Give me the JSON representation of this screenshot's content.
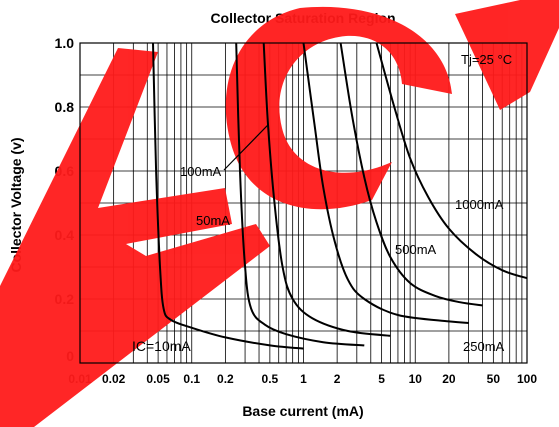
{
  "chart_data": {
    "type": "line",
    "title": "Collector Saturation Region",
    "xlabel": "Base current (mA)",
    "ylabel": "Collector Voltage (v)",
    "x_scale": "log",
    "xlim": [
      0.01,
      100
    ],
    "ylim": [
      0,
      1.0
    ],
    "grid": true,
    "x_ticks": [
      "0.01",
      "0.02",
      "0.05",
      "0.1",
      "0.2",
      "0.5",
      "1",
      "2",
      "5",
      "10",
      "20",
      "50",
      "100"
    ],
    "y_ticks": [
      {
        "value": 0,
        "label": "0"
      },
      {
        "value": 0.2,
        "label": "0.2"
      },
      {
        "value": 0.4,
        "label": "0.4"
      },
      {
        "value": 0.6,
        "label": "0.6"
      },
      {
        "value": 0.8,
        "label": "0.8"
      },
      {
        "value": 1.0,
        "label": "1.0"
      }
    ],
    "annotation": "Tj=25 °C",
    "series": [
      {
        "name": "Ic=10mA",
        "label_display": "IC=10mA",
        "points": [
          [
            0.045,
            1.0
          ],
          [
            0.048,
            0.6
          ],
          [
            0.052,
            0.3
          ],
          [
            0.056,
            0.17
          ],
          [
            0.065,
            0.135
          ],
          [
            0.1,
            0.11
          ],
          [
            0.2,
            0.08
          ],
          [
            0.5,
            0.055
          ],
          [
            1.0,
            0.045
          ]
        ]
      },
      {
        "name": "50mA",
        "label_display": "50mA",
        "points": [
          [
            0.25,
            1.0
          ],
          [
            0.27,
            0.6
          ],
          [
            0.3,
            0.3
          ],
          [
            0.34,
            0.17
          ],
          [
            0.45,
            0.12
          ],
          [
            0.7,
            0.09
          ],
          [
            1.5,
            0.065
          ],
          [
            3.5,
            0.055
          ]
        ]
      },
      {
        "name": "100mA",
        "label_display": "100mA",
        "points": [
          [
            0.44,
            1.0
          ],
          [
            0.48,
            0.75
          ],
          [
            0.55,
            0.5
          ],
          [
            0.65,
            0.3
          ],
          [
            0.8,
            0.2
          ],
          [
            1.2,
            0.14
          ],
          [
            2.5,
            0.1
          ],
          [
            6,
            0.085
          ]
        ]
      },
      {
        "name": "250mA",
        "label_display": "250mA",
        "points": [
          [
            1.0,
            1.0
          ],
          [
            1.25,
            0.75
          ],
          [
            1.5,
            0.55
          ],
          [
            1.9,
            0.38
          ],
          [
            2.5,
            0.26
          ],
          [
            3.5,
            0.2
          ],
          [
            7,
            0.15
          ],
          [
            20,
            0.13
          ],
          [
            30,
            0.125
          ]
        ]
      },
      {
        "name": "500mA",
        "label_display": "500mA",
        "points": [
          [
            2.15,
            1.0
          ],
          [
            2.7,
            0.78
          ],
          [
            3.5,
            0.58
          ],
          [
            4.5,
            0.44
          ],
          [
            6,
            0.33
          ],
          [
            9,
            0.25
          ],
          [
            15,
            0.21
          ],
          [
            25,
            0.19
          ],
          [
            40,
            0.18
          ]
        ]
      },
      {
        "name": "1000mA",
        "label_display": "1000mA",
        "points": [
          [
            4.5,
            1.0
          ],
          [
            6.5,
            0.8
          ],
          [
            9,
            0.64
          ],
          [
            13,
            0.52
          ],
          [
            20,
            0.42
          ],
          [
            35,
            0.34
          ],
          [
            60,
            0.29
          ],
          [
            100,
            0.265
          ]
        ]
      }
    ]
  }
}
